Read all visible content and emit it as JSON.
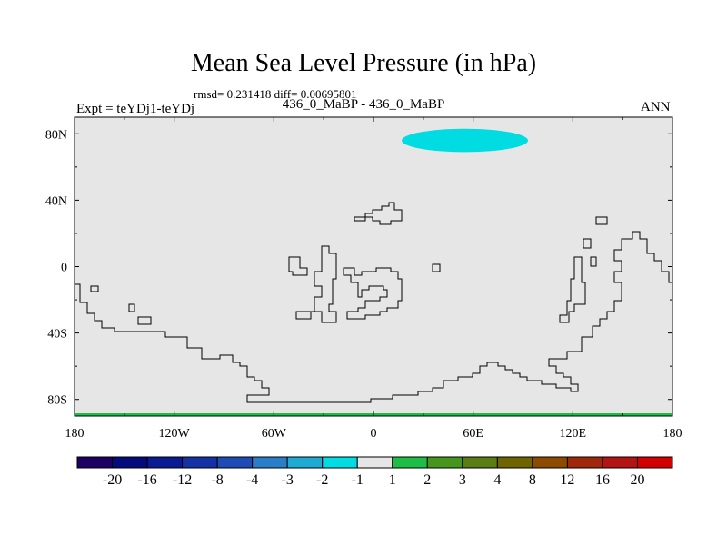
{
  "chart_data": {
    "type": "heatmap",
    "title": "Mean Sea Level Pressure (in hPa)",
    "stats": "rmsd= 0.231418 diff= 0.00695801",
    "left_label": "Expt = teYDj1-teYDj",
    "center_label": "436_0_MaBP - 436_0_MaBP",
    "right_label": "ANN",
    "x_range": [
      -180,
      180
    ],
    "y_range": [
      -90,
      90
    ],
    "x_ticks": [
      {
        "value": -180,
        "label": "180"
      },
      {
        "value": -120,
        "label": "120W"
      },
      {
        "value": -60,
        "label": "60W"
      },
      {
        "value": 0,
        "label": "0"
      },
      {
        "value": 60,
        "label": "60E"
      },
      {
        "value": 120,
        "label": "120E"
      },
      {
        "value": 180,
        "label": "180"
      }
    ],
    "y_ticks": [
      {
        "value": 80,
        "label": "80N"
      },
      {
        "value": 40,
        "label": "40N"
      },
      {
        "value": 0,
        "label": "0"
      },
      {
        "value": -40,
        "label": "40S"
      },
      {
        "value": -80,
        "label": "80S"
      }
    ],
    "background_level": "-1 to 1",
    "anomalies": [
      {
        "name": "arctic-anomaly",
        "range": "-2 to -1",
        "lon_center": 55,
        "lat_center": 76,
        "lon_halfwidth": 38,
        "lat_halfwidth": 7
      }
    ],
    "colorbar": {
      "labels": [
        "-20",
        "-16",
        "-12",
        "-8",
        "-4",
        "-3",
        "-2",
        "-1",
        "1",
        "2",
        "3",
        "4",
        "8",
        "12",
        "16",
        "20"
      ],
      "colors": [
        "#1e0064",
        "#050a7d",
        "#0a1a93",
        "#1432a5",
        "#1e4bb4",
        "#287fc8",
        "#1eaad2",
        "#00dce1",
        "#e6e6e6",
        "#1ebe46",
        "#46961e",
        "#5a7d14",
        "#6e6400",
        "#8c4b00",
        "#a0280a",
        "#b41414",
        "#d20000"
      ]
    }
  }
}
